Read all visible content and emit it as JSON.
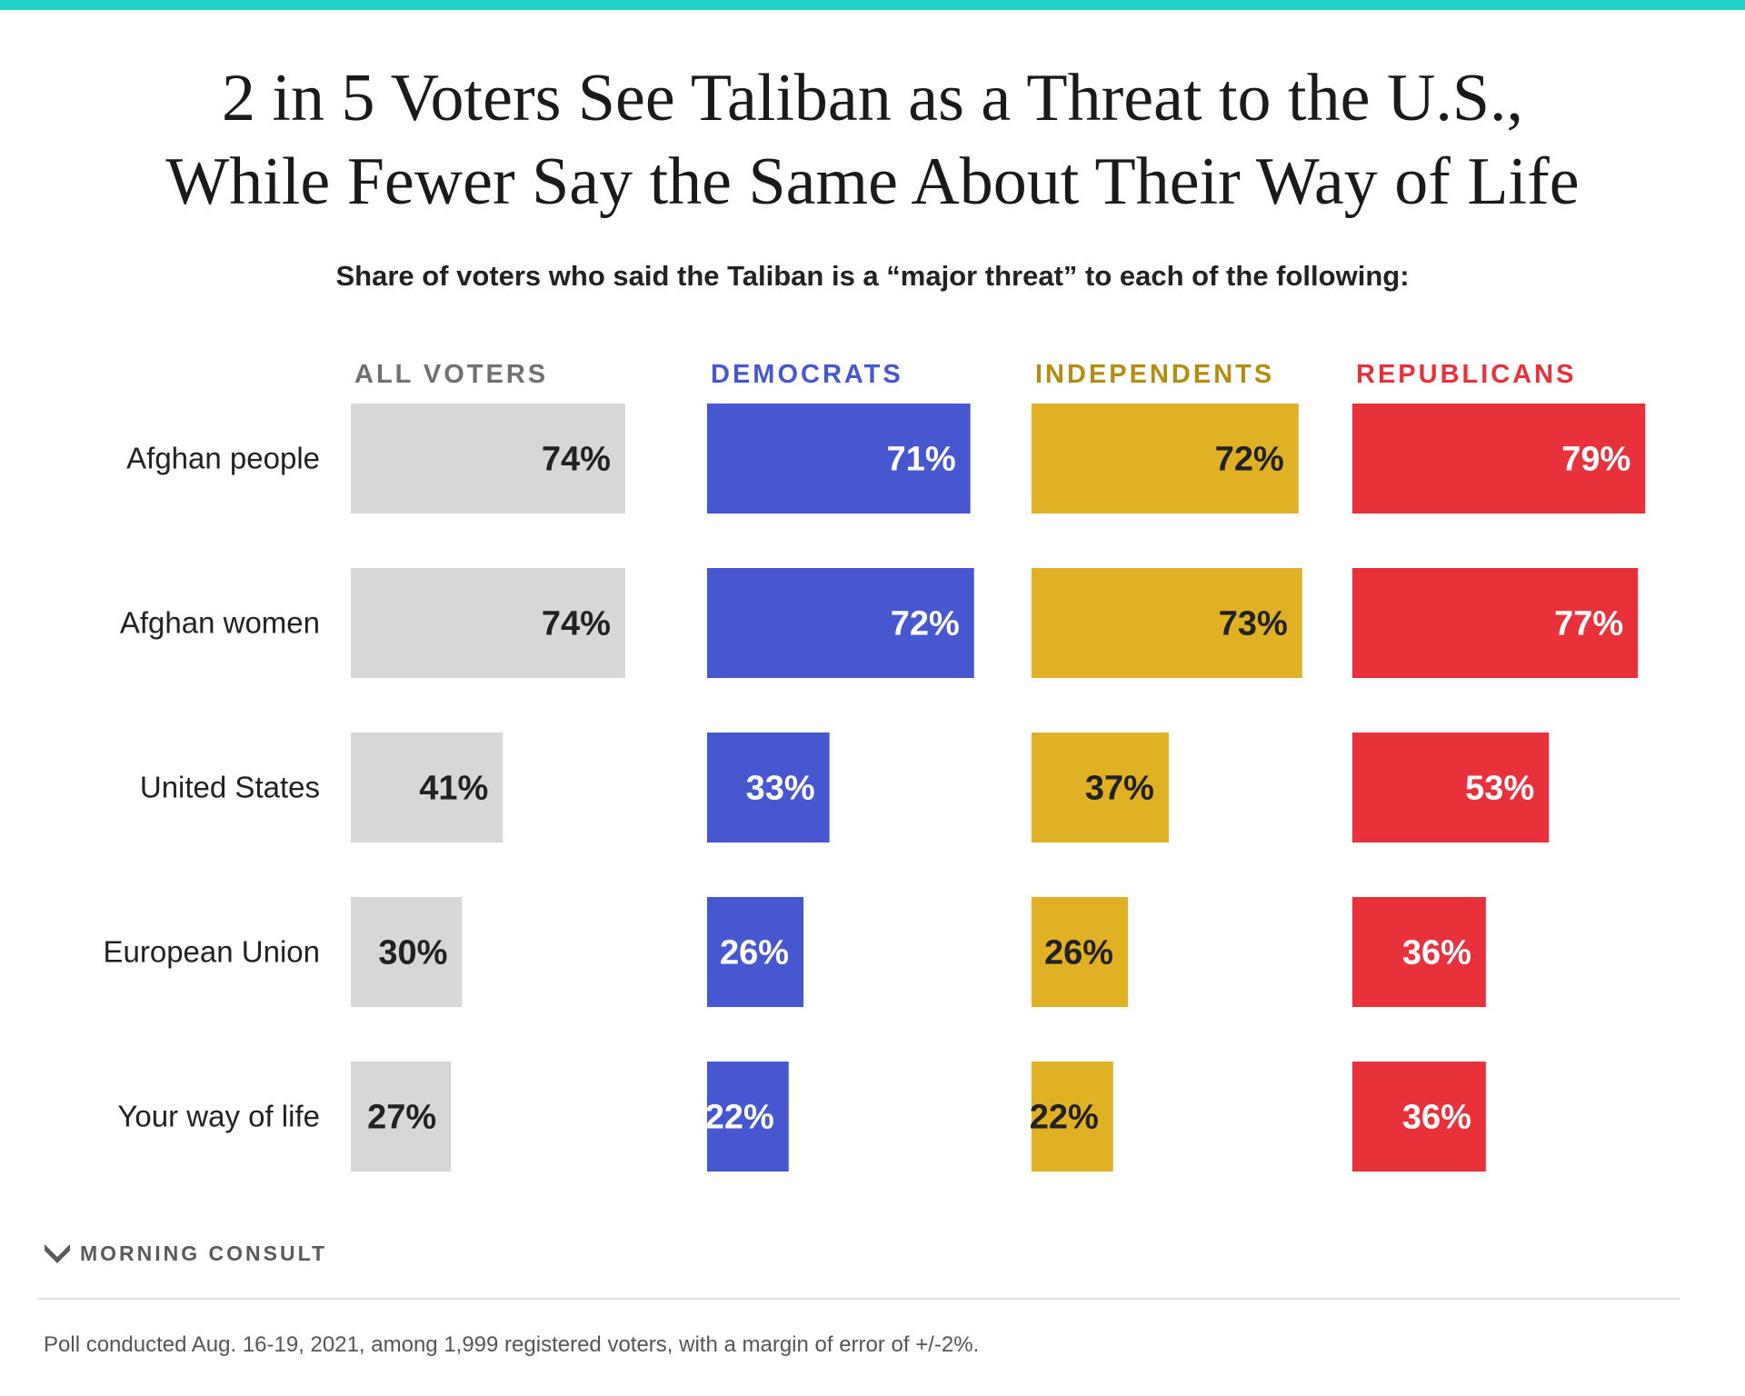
{
  "header": {
    "title_line1": "2 in 5 Voters See Taliban as a Threat to the U.S.,",
    "title_line2": "While Fewer Say the Same About Their Way of Life",
    "subtitle": "Share of voters who said the Taliban is a “major threat” to each of the following:"
  },
  "colors": {
    "accent_bar": "#1ed3c6",
    "all_voters": "#d7d7d7",
    "democrats": "#4657cf",
    "independents": "#e0b124",
    "republicans": "#e8313a",
    "row_label": "#222222"
  },
  "chart_data": {
    "type": "bar",
    "orientation": "horizontal",
    "layout": "small-multiples",
    "title": "2 in 5 Voters See Taliban as a Threat to the U.S., While Fewer Say the Same About Their Way of Life",
    "subtitle": "Share of voters who said the Taliban is a “major threat” to each of the following:",
    "categories": [
      "Afghan people",
      "Afghan women",
      "United States",
      "European Union",
      "Your way of life"
    ],
    "xlim": [
      0,
      100
    ],
    "grid": false,
    "series": [
      {
        "name": "ALL VOTERS",
        "color": "#d7d7d7",
        "header_color": "#707070",
        "label_color": "#222222",
        "values": [
          74,
          74,
          41,
          30,
          27
        ],
        "labels": [
          "74%",
          "74%",
          "41%",
          "30%",
          "27%"
        ]
      },
      {
        "name": "DEMOCRATS",
        "color": "#4657cf",
        "header_color": "#4657cf",
        "label_color": "#ffffff",
        "values": [
          71,
          72,
          33,
          26,
          22
        ],
        "labels": [
          "71%",
          "72%",
          "33%",
          "26%",
          "22%"
        ]
      },
      {
        "name": "INDEPENDENTS",
        "color": "#e0b124",
        "header_color": "#b38d12",
        "label_color": "#222222",
        "values": [
          72,
          73,
          37,
          26,
          22
        ],
        "labels": [
          "72%",
          "73%",
          "37%",
          "26%",
          "22%"
        ]
      },
      {
        "name": "REPUBLICANS",
        "color": "#e8313a",
        "header_color": "#e8313a",
        "label_color": "#ffffff",
        "values": [
          79,
          77,
          53,
          36,
          36
        ],
        "labels": [
          "79%",
          "77%",
          "53%",
          "36%",
          "36%"
        ]
      }
    ]
  },
  "footer": {
    "brand": "MORNING CONSULT",
    "brand_icon": "morning-consult-logo-icon",
    "note": "Poll conducted Aug. 16-19, 2021, among 1,999 registered voters, with a margin of error of +/-2%."
  }
}
